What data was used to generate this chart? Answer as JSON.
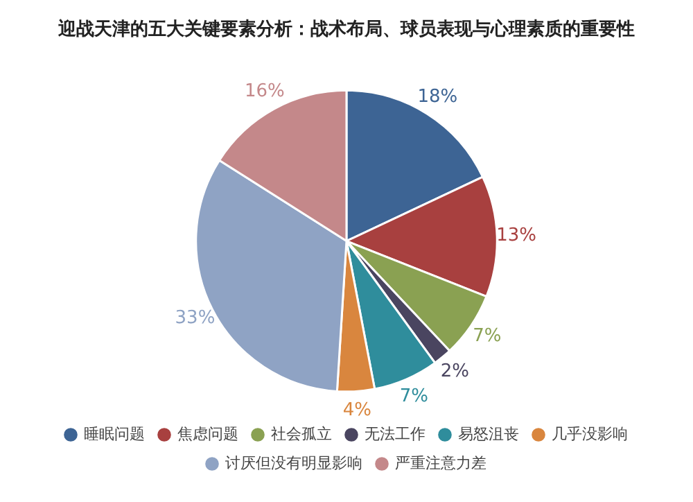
{
  "chart_data": {
    "type": "pie",
    "title": "迎战天津的五大关键要素分析：战术布局、球员表现与心理素质的重要性",
    "categories": [
      "睡眠问题",
      "焦虑问题",
      "社会孤立",
      "无法工作",
      "易怒沮丧",
      "几乎没影响",
      "讨厌但没有明显影响",
      "严重注意力差"
    ],
    "values": [
      18,
      13,
      7,
      2,
      7,
      4,
      33,
      16
    ],
    "value_labels": [
      "18%",
      "13%",
      "7%",
      "2%",
      "7%",
      "4%",
      "33%",
      "16%"
    ],
    "colors": [
      "#3d6494",
      "#a8403f",
      "#8aa152",
      "#4a4560",
      "#2f8d9c",
      "#d9863e",
      "#8fa3c4",
      "#c4888a"
    ],
    "legend": "bottom"
  }
}
